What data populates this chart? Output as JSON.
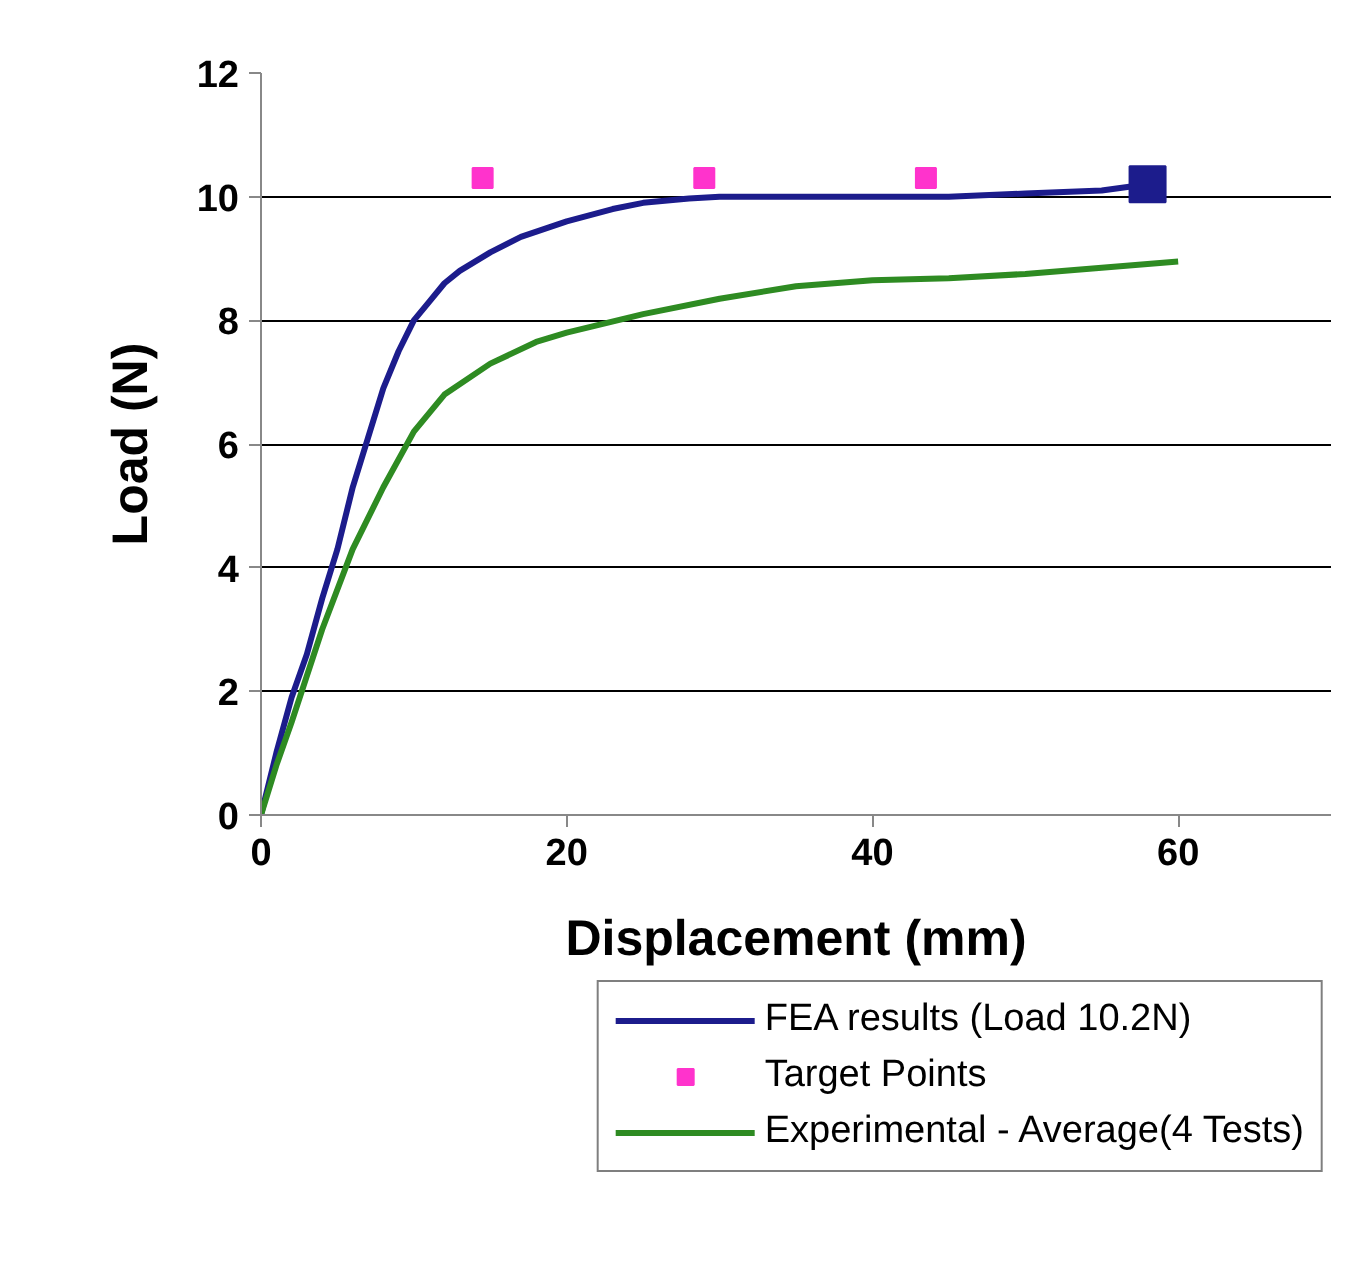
{
  "chart_data": {
    "type": "line",
    "xlabel": "Displacement (mm)",
    "ylabel": "Load (N)",
    "xlim": [
      0,
      70
    ],
    "ylim": [
      0,
      12
    ],
    "xticks": [
      0,
      20,
      40,
      60
    ],
    "yticks": [
      0,
      2,
      4,
      6,
      8,
      10,
      12
    ],
    "grid": "y",
    "legend": "bottom",
    "series": [
      {
        "name": "FEA results (Load 10.2N)",
        "color": "#1c1c8c",
        "x": [
          0,
          1,
          2,
          3,
          4,
          5,
          6,
          7,
          8,
          9,
          10,
          11,
          12,
          13,
          15,
          17,
          20,
          23,
          25,
          28,
          30,
          35,
          40,
          45,
          50,
          55,
          58
        ],
        "values": [
          0,
          1,
          1.9,
          2.6,
          3.5,
          4.3,
          5.3,
          6.1,
          6.9,
          7.5,
          8,
          8.3,
          8.6,
          8.8,
          9.1,
          9.35,
          9.6,
          9.8,
          9.9,
          9.97,
          10,
          10,
          10,
          10,
          10.05,
          10.1,
          10.2
        ]
      },
      {
        "name": "Target Points",
        "type": "scatter",
        "marker": "square",
        "color": "#ff33cc",
        "x": [
          14.5,
          29,
          43.5
        ],
        "values": [
          10.3,
          10.3,
          10.3
        ]
      },
      {
        "name": "Experimental - Average(4 Tests)",
        "color": "#2e8b22",
        "x": [
          0,
          1,
          2,
          4,
          6,
          8,
          10,
          12,
          15,
          18,
          20,
          25,
          30,
          35,
          40,
          45,
          50,
          55,
          60
        ],
        "values": [
          0,
          0.8,
          1.5,
          3,
          4.3,
          5.3,
          6.2,
          6.8,
          7.3,
          7.65,
          7.8,
          8.1,
          8.35,
          8.55,
          8.65,
          8.68,
          8.75,
          8.85,
          8.95
        ]
      },
      {
        "type": "scatter",
        "marker": "square",
        "color": "#1c1c8c",
        "x": [
          58
        ],
        "values": [
          10.2
        ]
      }
    ]
  }
}
